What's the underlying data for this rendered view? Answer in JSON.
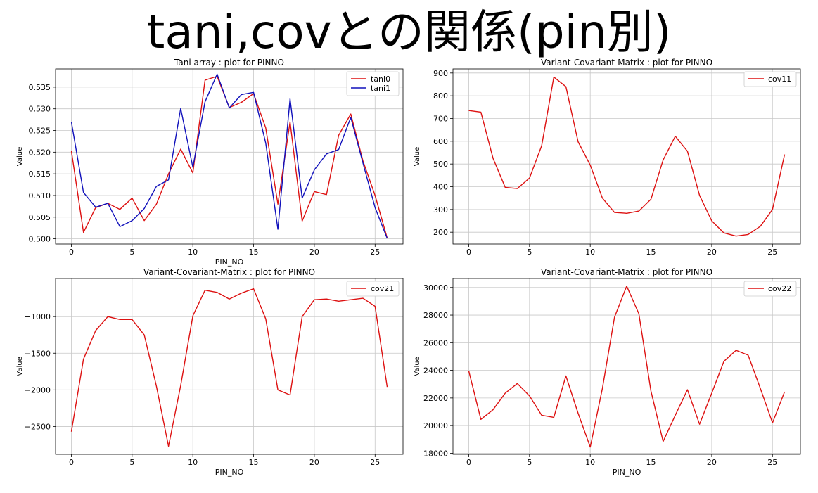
{
  "slide": {
    "title": "tani,covとの関係(pin別)"
  },
  "chart_data": [
    {
      "type": "line",
      "title": "Tani array : plot for PINNO",
      "xlabel": "PIN_NO",
      "ylabel": "Value",
      "xlim": [
        -1.3,
        27.3
      ],
      "ylim": [
        0.4988,
        0.5392
      ],
      "xticks": [
        0,
        5,
        10,
        15,
        20,
        25
      ],
      "yticks": [
        0.5,
        0.505,
        0.51,
        0.515,
        0.52,
        0.525,
        0.53,
        0.535
      ],
      "ytick_labels": [
        "0.500",
        "0.505",
        "0.510",
        "0.515",
        "0.520",
        "0.525",
        "0.530",
        "0.535"
      ],
      "grid": true,
      "legend": "top-right",
      "x": [
        0,
        1,
        2,
        3,
        4,
        5,
        6,
        7,
        8,
        9,
        10,
        11,
        12,
        13,
        14,
        15,
        16,
        17,
        18,
        19,
        20,
        21,
        22,
        23,
        24,
        25,
        26
      ],
      "series": [
        {
          "name": "tani0",
          "color": "#dd1111",
          "values": [
            0.5203,
            0.5015,
            0.5072,
            0.5082,
            0.5068,
            0.5094,
            0.5042,
            0.508,
            0.515,
            0.5207,
            0.5152,
            0.5366,
            0.5375,
            0.5303,
            0.5315,
            0.5335,
            0.5256,
            0.508,
            0.527,
            0.5041,
            0.5109,
            0.5102,
            0.5239,
            0.5288,
            0.518,
            0.51,
            0.5002
          ]
        },
        {
          "name": "tani1",
          "color": "#1111bb",
          "values": [
            0.527,
            0.5107,
            0.5073,
            0.5082,
            0.5028,
            0.5042,
            0.507,
            0.5121,
            0.5136,
            0.5301,
            0.5165,
            0.5316,
            0.538,
            0.5302,
            0.5333,
            0.5338,
            0.5221,
            0.5022,
            0.5323,
            0.5094,
            0.5159,
            0.5196,
            0.5206,
            0.528,
            0.5175,
            0.5072,
            0.5001
          ]
        }
      ]
    },
    {
      "type": "line",
      "title": "Variant-Covariant-Matrix : plot for PINNO",
      "xlabel": "",
      "ylabel": "Value",
      "xlim": [
        -1.3,
        27.3
      ],
      "ylim": [
        148,
        918
      ],
      "xticks": [
        0,
        5,
        10,
        15,
        20,
        25
      ],
      "yticks": [
        200,
        300,
        400,
        500,
        600,
        700,
        800,
        900
      ],
      "ytick_labels": [
        "200",
        "300",
        "400",
        "500",
        "600",
        "700",
        "800",
        "900"
      ],
      "grid": true,
      "legend": "top-right",
      "x": [
        0,
        1,
        2,
        3,
        4,
        5,
        6,
        7,
        8,
        9,
        10,
        11,
        12,
        13,
        14,
        15,
        16,
        17,
        18,
        19,
        20,
        21,
        22,
        23,
        24,
        25,
        26
      ],
      "series": [
        {
          "name": "cov11",
          "color": "#dd1111",
          "values": [
            735,
            728,
            525,
            397,
            392,
            438,
            580,
            882,
            840,
            598,
            495,
            350,
            287,
            283,
            293,
            345,
            518,
            622,
            556,
            362,
            250,
            197,
            183,
            190,
            226,
            300,
            542
          ]
        }
      ]
    },
    {
      "type": "line",
      "title": "Variant-Covariant-Matrix : plot for PINNO",
      "xlabel": "PIN_NO",
      "ylabel": "Value",
      "xlim": [
        -1.3,
        27.3
      ],
      "ylim": [
        -2880,
        -480
      ],
      "xticks": [
        0,
        5,
        10,
        15,
        20,
        25
      ],
      "yticks": [
        -2500,
        -2000,
        -1500,
        -1000
      ],
      "ytick_labels": [
        "−2500",
        "−2000",
        "−1500",
        "−1000"
      ],
      "grid": true,
      "legend": "top-right",
      "x": [
        0,
        1,
        2,
        3,
        4,
        5,
        6,
        7,
        8,
        9,
        10,
        11,
        12,
        13,
        14,
        15,
        16,
        17,
        18,
        19,
        20,
        21,
        22,
        23,
        24,
        25,
        26
      ],
      "series": [
        {
          "name": "cov21",
          "color": "#dd1111",
          "values": [
            -2570,
            -1580,
            -1190,
            -1000,
            -1040,
            -1040,
            -1250,
            -1950,
            -2770,
            -1940,
            -990,
            -640,
            -670,
            -760,
            -680,
            -620,
            -1030,
            -2000,
            -2070,
            -1000,
            -770,
            -760,
            -790,
            -770,
            -750,
            -860,
            -1960
          ]
        }
      ]
    },
    {
      "type": "line",
      "title": "Variant-Covariant-Matrix : plot for PINNO",
      "xlabel": "PIN_NO",
      "ylabel": "Value",
      "xlim": [
        -1.3,
        27.3
      ],
      "ylim": [
        17920,
        30650
      ],
      "xticks": [
        0,
        5,
        10,
        15,
        20,
        25
      ],
      "yticks": [
        18000,
        20000,
        22000,
        24000,
        26000,
        28000,
        30000
      ],
      "ytick_labels": [
        "18000",
        "20000",
        "22000",
        "24000",
        "26000",
        "28000",
        "30000"
      ],
      "grid": true,
      "legend": "top-right",
      "x": [
        0,
        1,
        2,
        3,
        4,
        5,
        6,
        7,
        8,
        9,
        10,
        11,
        12,
        13,
        14,
        15,
        16,
        17,
        18,
        19,
        20,
        21,
        22,
        23,
        24,
        25,
        26
      ],
      "series": [
        {
          "name": "cov22",
          "color": "#dd1111",
          "values": [
            23950,
            20450,
            21150,
            22350,
            23050,
            22150,
            20750,
            20600,
            23600,
            20900,
            18450,
            22700,
            27850,
            30100,
            28100,
            22500,
            18850,
            20750,
            22600,
            20100,
            22350,
            24650,
            25450,
            25100,
            22700,
            20200,
            22450
          ]
        }
      ]
    }
  ]
}
